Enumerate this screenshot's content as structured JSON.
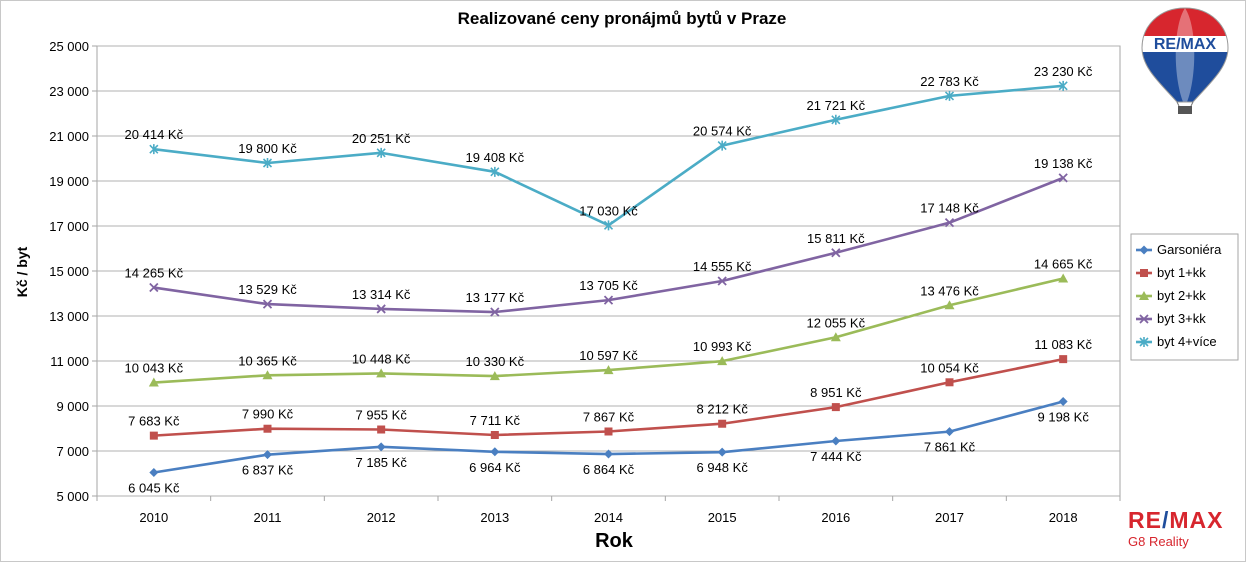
{
  "chart_data": {
    "type": "line",
    "title": "Realizované ceny pronájmů bytů v Praze",
    "xlabel": "Rok",
    "ylabel": "Kč / byt",
    "categories": [
      "2010",
      "2011",
      "2012",
      "2013",
      "2014",
      "2015",
      "2016",
      "2017",
      "2018"
    ],
    "ylim": [
      5000,
      25000
    ],
    "yticks": [
      5000,
      7000,
      9000,
      11000,
      13000,
      15000,
      17000,
      19000,
      21000,
      23000,
      25000
    ],
    "ytick_labels": [
      "5 000",
      "7 000",
      "9 000",
      "11 000",
      "13 000",
      "15 000",
      "17 000",
      "19 000",
      "21 000",
      "23 000",
      "25 000"
    ],
    "grid": true,
    "legend_position": "right",
    "series": [
      {
        "name": "Garsoniéra",
        "color": "#4a7fc1",
        "marker": "diamond",
        "label_pos": "below",
        "values": [
          6045,
          6837,
          7185,
          6964,
          6864,
          6948,
          7444,
          7861,
          9198
        ],
        "labels": [
          "6 045 Kč",
          "6 837 Kč",
          "7 185 Kč",
          "6 964 Kč",
          "6 864 Kč",
          "6 948 Kč",
          "7 444 Kč",
          "7 861 Kč",
          "9 198 Kč"
        ]
      },
      {
        "name": "byt 1+kk",
        "color": "#c0504d",
        "marker": "square",
        "label_pos": "above",
        "values": [
          7683,
          7990,
          7955,
          7711,
          7867,
          8212,
          8951,
          10054,
          11083
        ],
        "labels": [
          "7 683 Kč",
          "7 990 Kč",
          "7 955 Kč",
          "7 711 Kč",
          "7 867 Kč",
          "8 212 Kč",
          "8 951 Kč",
          "10 054 Kč",
          "11 083 Kč"
        ]
      },
      {
        "name": "byt 2+kk",
        "color": "#9bbb59",
        "marker": "triangle",
        "label_pos": "above",
        "values": [
          10043,
          10365,
          10448,
          10330,
          10597,
          10993,
          12055,
          13476,
          14665
        ],
        "labels": [
          "10 043 Kč",
          "10 365 Kč",
          "10 448 Kč",
          "10 330 Kč",
          "10 597 Kč",
          "10 993 Kč",
          "12 055 Kč",
          "13 476 Kč",
          "14 665 Kč"
        ]
      },
      {
        "name": "byt 3+kk",
        "color": "#8064a2",
        "marker": "x",
        "label_pos": "above",
        "values": [
          14265,
          13529,
          13314,
          13177,
          13705,
          14555,
          15811,
          17148,
          19138
        ],
        "labels": [
          "14 265 Kč",
          "13 529 Kč",
          "13 314 Kč",
          "13 177 Kč",
          "13 705 Kč",
          "14 555 Kč",
          "15 811 Kč",
          "17 148 Kč",
          "19 138 Kč"
        ]
      },
      {
        "name": "byt 4+více",
        "color": "#4bacc6",
        "marker": "star",
        "label_pos": "above",
        "values": [
          20414,
          19800,
          20251,
          19408,
          17030,
          20574,
          21721,
          22783,
          23230
        ],
        "labels": [
          "20 414 Kč",
          "19 800 Kč",
          "20 251 Kč",
          "19 408 Kč",
          "17 030 Kč",
          "20 574 Kč",
          "21 721 Kč",
          "22 783 Kč",
          "23 230 Kč"
        ]
      }
    ]
  },
  "branding": {
    "balloon_text": "RE/MAX",
    "brand_left": "RE",
    "brand_slash": "/",
    "brand_right": "MAX",
    "brand_sub": "G8 Reality",
    "colors": {
      "red": "#d7262e",
      "blue": "#1f4d9c"
    }
  }
}
